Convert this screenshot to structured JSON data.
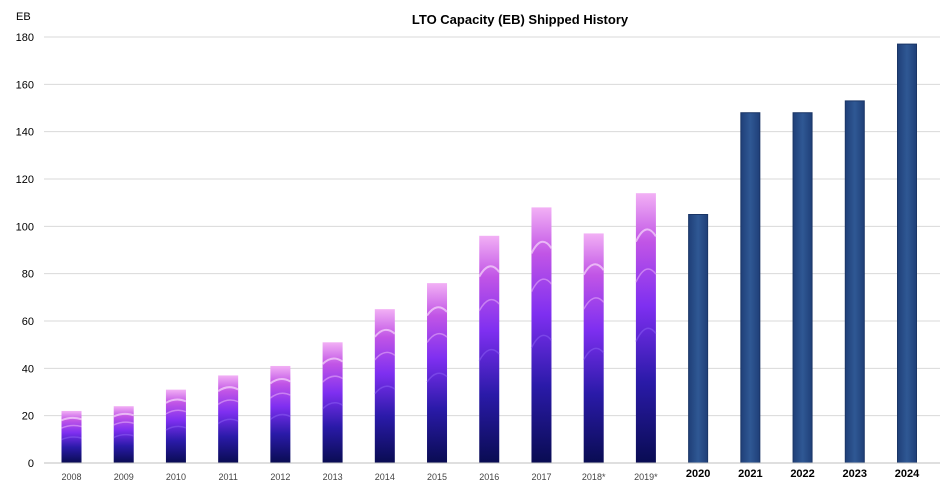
{
  "chart_data": {
    "type": "bar",
    "title": "LTO Capacity (EB) Shipped History",
    "unit_label": "EB",
    "xlabel": "",
    "ylabel": "",
    "ylim": [
      0,
      180
    ],
    "yticks": [
      0,
      20,
      40,
      60,
      80,
      100,
      120,
      140,
      160,
      180
    ],
    "grid": true,
    "legend": "none",
    "categories": [
      "2008",
      "2009",
      "2010",
      "2011",
      "2012",
      "2013",
      "2014",
      "2015",
      "2016",
      "2017",
      "2018*",
      "2019*",
      "2020",
      "2021",
      "2022",
      "2023",
      "2024"
    ],
    "values": [
      22,
      24,
      31,
      37,
      41,
      51,
      65,
      76,
      96,
      108,
      97,
      114,
      105,
      148,
      148,
      153,
      177
    ],
    "styled_count": 12,
    "colors": {
      "gradient_top": "#f0a6f6",
      "gradient_mid": "#7b2ff0",
      "gradient_bottom": "#0a0f5c",
      "plain_bar": "#2a4f8a",
      "plain_bar_edge": "#1a3566",
      "grid": "#d9d9d9"
    }
  }
}
